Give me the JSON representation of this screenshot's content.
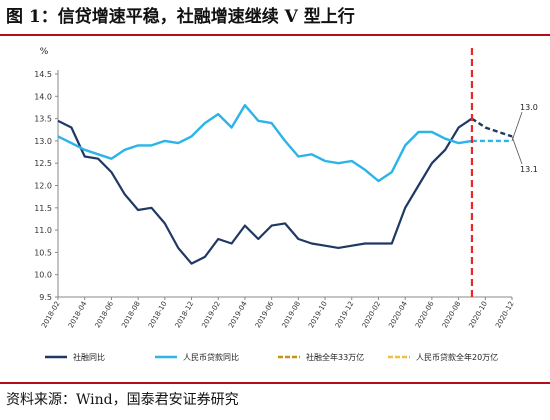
{
  "header": {
    "title": "图 1：信贷增速平稳，社融增速继续 V 型上行"
  },
  "footer": {
    "source": "资料来源：Wind，国泰君安证券研究"
  },
  "colors": {
    "social_financing": "#1f3864",
    "rmb_loans": "#2ab4e8",
    "forecast_social": "#c9901c",
    "forecast_loans": "#f0c040",
    "divider": "#e8262b",
    "rule": "#b50c1a"
  },
  "chart_data": {
    "type": "line",
    "ylabel": "%",
    "ylim": [
      9.5,
      14.5
    ],
    "y_ticks": [
      "9.5",
      "10.0",
      "10.5",
      "11.0",
      "11.5",
      "12.0",
      "12.5",
      "13.0",
      "13.5",
      "14.0",
      "14.5"
    ],
    "x_start": "2018-02",
    "x_end": "2020-12",
    "x_ticks": [
      "2018-02",
      "2018-04",
      "2018-06",
      "2018-08",
      "2018-10",
      "2018-12",
      "2019-02",
      "2019-04",
      "2019-06",
      "2019-08",
      "2019-10",
      "2019-12",
      "2020-02",
      "2020-04",
      "2020-06",
      "2020-08",
      "2020-10",
      "2020-12"
    ],
    "x": [
      "2018-02",
      "2018-03",
      "2018-04",
      "2018-05",
      "2018-06",
      "2018-07",
      "2018-08",
      "2018-09",
      "2018-10",
      "2018-11",
      "2018-12",
      "2019-01",
      "2019-02",
      "2019-03",
      "2019-04",
      "2019-05",
      "2019-06",
      "2019-07",
      "2019-08",
      "2019-09",
      "2019-10",
      "2019-11",
      "2019-12",
      "2020-01",
      "2020-02",
      "2020-03",
      "2020-04",
      "2020-05",
      "2020-06",
      "2020-07",
      "2020-08",
      "2020-09"
    ],
    "series": [
      {
        "name": "社融同比",
        "color": "#1f3864",
        "values": [
          13.45,
          13.3,
          12.65,
          12.6,
          12.3,
          11.8,
          11.45,
          11.5,
          11.15,
          10.6,
          10.25,
          10.4,
          10.8,
          10.7,
          11.1,
          10.8,
          11.1,
          11.15,
          10.8,
          10.7,
          10.65,
          10.6,
          10.65,
          10.7,
          10.7,
          10.7,
          11.5,
          12.0,
          12.5,
          12.8,
          13.3,
          13.5
        ]
      },
      {
        "name": "人民币贷款同比",
        "color": "#2ab4e8",
        "values": [
          13.1,
          12.95,
          12.8,
          12.7,
          12.6,
          12.8,
          12.9,
          12.9,
          13.0,
          12.95,
          13.1,
          13.4,
          13.6,
          13.3,
          13.8,
          13.45,
          13.4,
          13.0,
          12.65,
          12.7,
          12.55,
          12.5,
          12.55,
          12.35,
          12.1,
          12.3,
          12.9,
          13.2,
          13.2,
          13.05,
          12.95,
          13.0
        ]
      }
    ],
    "forecast": [
      {
        "name": "社融全年33万亿",
        "color": "#c9901c",
        "x": [
          "2020-09",
          "2020-10",
          "2020-11",
          "2020-12"
        ],
        "values": [
          13.5,
          13.3,
          13.2,
          13.1
        ]
      },
      {
        "name": "人民币贷款全年20万亿",
        "color": "#f0c040",
        "x": [
          "2020-09",
          "2020-10",
          "2020-11",
          "2020-12"
        ],
        "values": [
          13.0,
          13.0,
          13.0,
          13.0
        ]
      }
    ],
    "divider_at": "2020-09",
    "end_labels": [
      {
        "text": "13.0",
        "series": "人民币贷款全年20万亿"
      },
      {
        "text": "13.1",
        "series": "社融全年33万亿"
      }
    ],
    "legend": {
      "position": "bottom",
      "items": [
        {
          "label": "社融同比",
          "color": "#1f3864",
          "style": "solid"
        },
        {
          "label": "人民币贷款同比",
          "color": "#2ab4e8",
          "style": "solid"
        },
        {
          "label": "社融全年33万亿",
          "color": "#c9901c",
          "style": "dashed"
        },
        {
          "label": "人民币贷款全年20万亿",
          "color": "#f0c040",
          "style": "dashed"
        }
      ]
    }
  }
}
